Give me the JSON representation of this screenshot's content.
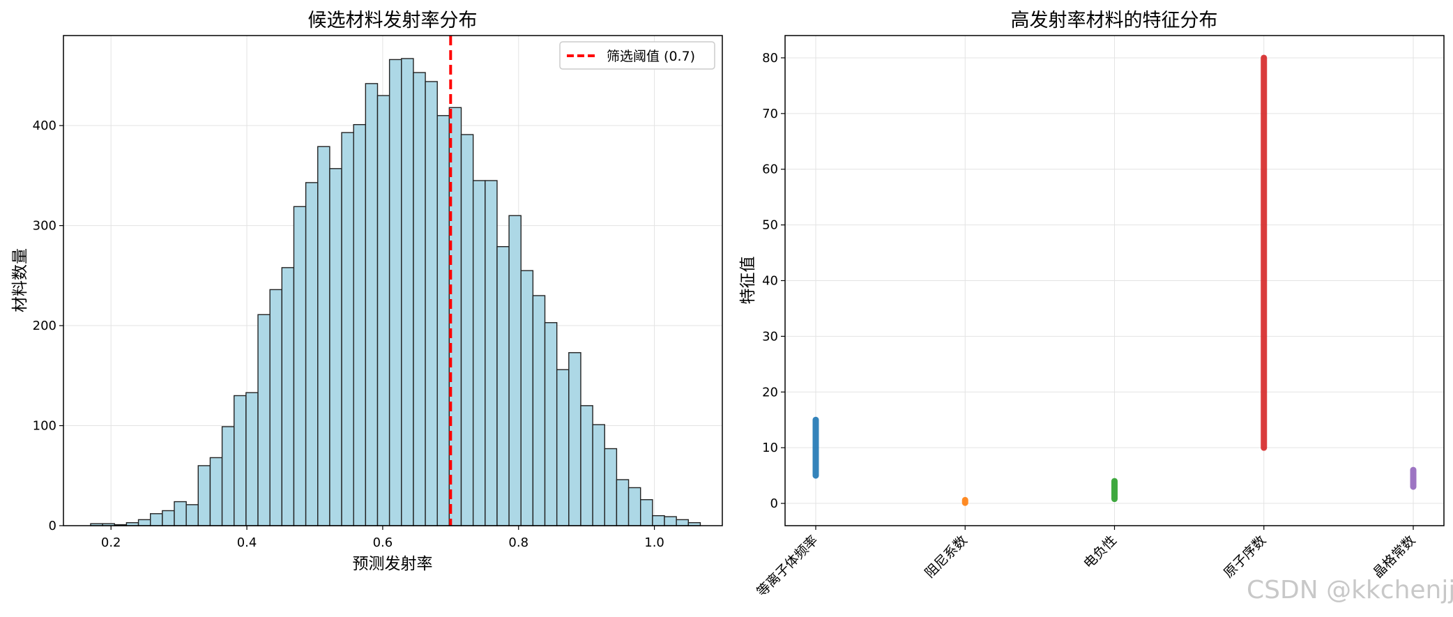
{
  "watermark": "CSDN @kkchenjj",
  "chart_data": [
    {
      "type": "bar",
      "subtype": "histogram",
      "title": "候选材料发射率分布",
      "xlabel": "预测发射率",
      "ylabel": "材料数量",
      "xlim": [
        0.13,
        1.1
      ],
      "ylim": [
        0,
        490
      ],
      "xticks": [
        0.2,
        0.4,
        0.6,
        0.8,
        1.0
      ],
      "xtick_labels": [
        "0.2",
        "0.4",
        "0.6",
        "0.8",
        "1.0"
      ],
      "yticks": [
        0,
        100,
        200,
        300,
        400
      ],
      "ytick_labels": [
        "0",
        "100",
        "200",
        "300",
        "400"
      ],
      "grid": true,
      "bar_color": "#add8e6",
      "bin_start": 0.17,
      "bin_width": 0.0176,
      "values": [
        2,
        2,
        1,
        3,
        6,
        12,
        15,
        24,
        21,
        60,
        68,
        99,
        130,
        133,
        211,
        236,
        258,
        319,
        343,
        379,
        357,
        393,
        401,
        442,
        430,
        466,
        467,
        453,
        444,
        410,
        418,
        391,
        345,
        345,
        279,
        310,
        255,
        230,
        203,
        156,
        173,
        120,
        101,
        77,
        46,
        38,
        26,
        10,
        9,
        6,
        3
      ],
      "threshold": {
        "x": 0.7,
        "label": "筛选阈值 (0.7)",
        "color": "#ff0000"
      },
      "legend_position": "top-right"
    },
    {
      "type": "scatter",
      "subtype": "strip",
      "title": "高发射率材料的特征分布",
      "xlabel": "",
      "ylabel": "特征值",
      "categories": [
        "等离子体频率",
        "阻尼系数",
        "电负性",
        "原子序数",
        "晶格常数"
      ],
      "ranges": [
        {
          "min": 5,
          "max": 15,
          "color": "#1f77b4"
        },
        {
          "min": 0.1,
          "max": 0.6,
          "color": "#ff7f0e"
        },
        {
          "min": 0.8,
          "max": 4,
          "color": "#2ca02c"
        },
        {
          "min": 10,
          "max": 80,
          "color": "#d62728"
        },
        {
          "min": 3,
          "max": 6,
          "color": "#9467bd"
        }
      ],
      "ylim": [
        -4,
        84
      ],
      "yticks": [
        0,
        10,
        20,
        30,
        40,
        50,
        60,
        70,
        80
      ],
      "ytick_labels": [
        "0",
        "10",
        "20",
        "30",
        "40",
        "50",
        "60",
        "70",
        "80"
      ],
      "grid": true
    }
  ]
}
